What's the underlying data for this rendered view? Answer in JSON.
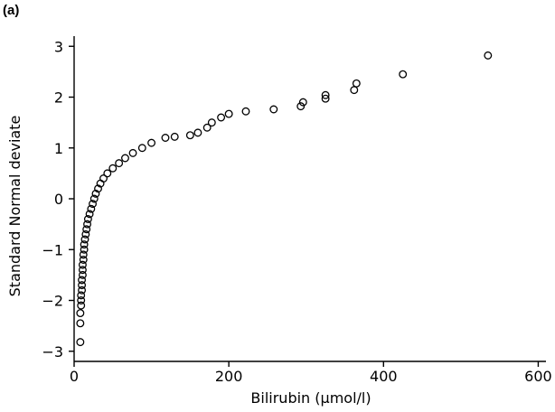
{
  "chart_data": {
    "type": "scatter",
    "panel_label": "(a)",
    "title": "",
    "xlabel": "Bilirubin (μmol/l)",
    "ylabel": "Standard Normal deviate",
    "xlim": [
      0,
      610
    ],
    "ylim": [
      -3.2,
      3.2
    ],
    "xticks": [
      0,
      200,
      400,
      600
    ],
    "yticks": [
      -3,
      -2,
      -1,
      0,
      1,
      2,
      3
    ],
    "grid": false,
    "series": [
      {
        "marker": "open-circle",
        "points": [
          [
            8,
            -2.82
          ],
          [
            8,
            -2.45
          ],
          [
            8,
            -2.25
          ],
          [
            9,
            -2.1
          ],
          [
            9,
            -2.0
          ],
          [
            9,
            -1.9
          ],
          [
            10,
            -1.8
          ],
          [
            10,
            -1.7
          ],
          [
            10,
            -1.6
          ],
          [
            11,
            -1.5
          ],
          [
            11,
            -1.4
          ],
          [
            11,
            -1.3
          ],
          [
            12,
            -1.2
          ],
          [
            12,
            -1.1
          ],
          [
            13,
            -1.0
          ],
          [
            13,
            -0.9
          ],
          [
            14,
            -0.8
          ],
          [
            15,
            -0.7
          ],
          [
            16,
            -0.6
          ],
          [
            17,
            -0.5
          ],
          [
            18,
            -0.4
          ],
          [
            20,
            -0.3
          ],
          [
            22,
            -0.2
          ],
          [
            24,
            -0.1
          ],
          [
            26,
            0.0
          ],
          [
            28,
            0.1
          ],
          [
            31,
            0.2
          ],
          [
            34,
            0.3
          ],
          [
            38,
            0.4
          ],
          [
            43,
            0.5
          ],
          [
            50,
            0.6
          ],
          [
            58,
            0.7
          ],
          [
            66,
            0.8
          ],
          [
            76,
            0.9
          ],
          [
            88,
            1.0
          ],
          [
            100,
            1.1
          ],
          [
            118,
            1.2
          ],
          [
            130,
            1.22
          ],
          [
            150,
            1.25
          ],
          [
            160,
            1.3
          ],
          [
            172,
            1.4
          ],
          [
            178,
            1.5
          ],
          [
            190,
            1.6
          ],
          [
            200,
            1.67
          ],
          [
            222,
            1.72
          ],
          [
            258,
            1.76
          ],
          [
            293,
            1.82
          ],
          [
            296,
            1.9
          ],
          [
            325,
            1.97
          ],
          [
            325,
            2.04
          ],
          [
            362,
            2.14
          ],
          [
            365,
            2.27
          ],
          [
            425,
            2.45
          ],
          [
            535,
            2.82
          ]
        ]
      }
    ]
  }
}
